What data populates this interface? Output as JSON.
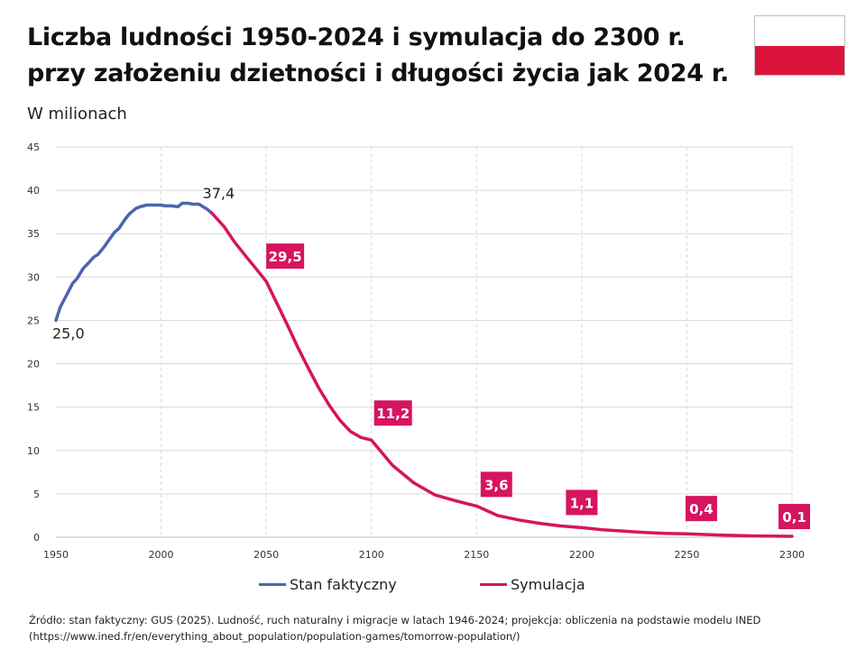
{
  "title_line1": "Liczba ludności 1950-2024 i symulacja do 2300 r.",
  "title_line2": "przy założeniu dzietności i długości życia jak 2024 r.",
  "subtitle": "W milionach",
  "source_line1": "Źródło: stan faktyczny: GUS (2025). Ludność, ruch naturalny i migracje w latach 1946-2024; projekcja: obliczenia na podstawie modelu INED",
  "source_line2": "(https://www.ined.fr/en/everything_about_population/population-games/tomorrow-population/)",
  "flag": {
    "top_color": "#ffffff",
    "bottom_color": "#dc143c"
  },
  "chart_data": {
    "type": "line",
    "title": "Liczba ludności 1950-2024 i symulacja do 2300 r. przy założeniu dzietności i długości życia jak 2024 r.",
    "ylabel": "W milionach",
    "xlabel": "",
    "xlim": [
      1950,
      2300
    ],
    "ylim": [
      0,
      45
    ],
    "x_ticks": [
      1950,
      2000,
      2050,
      2100,
      2150,
      2200,
      2250,
      2300
    ],
    "y_ticks": [
      0,
      5,
      10,
      15,
      20,
      25,
      30,
      35,
      40,
      45
    ],
    "grid": true,
    "legend_position": "bottom",
    "series": [
      {
        "name": "Stan faktyczny",
        "color": "#4a66ac",
        "x": [
          1950,
          1952,
          1955,
          1958,
          1960,
          1963,
          1965,
          1968,
          1970,
          1973,
          1975,
          1978,
          1980,
          1983,
          1985,
          1988,
          1990,
          1993,
          1995,
          1998,
          2000,
          2002,
          2005,
          2008,
          2010,
          2011,
          2013,
          2015,
          2018,
          2020,
          2022,
          2024
        ],
        "y": [
          25.0,
          26.5,
          27.9,
          29.3,
          29.8,
          31.0,
          31.5,
          32.3,
          32.6,
          33.5,
          34.2,
          35.2,
          35.6,
          36.7,
          37.3,
          37.9,
          38.1,
          38.3,
          38.3,
          38.3,
          38.3,
          38.2,
          38.2,
          38.1,
          38.5,
          38.5,
          38.5,
          38.4,
          38.4,
          38.1,
          37.8,
          37.4
        ]
      },
      {
        "name": "Symulacja",
        "color": "#d6145f",
        "x": [
          2024,
          2030,
          2035,
          2040,
          2045,
          2050,
          2055,
          2060,
          2065,
          2070,
          2075,
          2080,
          2085,
          2090,
          2095,
          2100,
          2110,
          2120,
          2130,
          2140,
          2150,
          2160,
          2170,
          2180,
          2190,
          2200,
          2210,
          2220,
          2230,
          2240,
          2250,
          2260,
          2270,
          2280,
          2290,
          2300
        ],
        "y": [
          37.4,
          35.8,
          34.0,
          32.5,
          31.0,
          29.5,
          27.0,
          24.5,
          21.9,
          19.5,
          17.2,
          15.2,
          13.5,
          12.2,
          11.5,
          11.2,
          8.3,
          6.3,
          4.9,
          4.2,
          3.6,
          2.5,
          2.0,
          1.6,
          1.3,
          1.1,
          0.85,
          0.7,
          0.55,
          0.45,
          0.4,
          0.3,
          0.22,
          0.16,
          0.12,
          0.1
        ]
      }
    ],
    "annotations": [
      {
        "x": 1950,
        "y": 25.0,
        "text": "25,0",
        "style": "plain"
      },
      {
        "x": 2024,
        "y": 37.4,
        "text": "37,4",
        "style": "plain"
      },
      {
        "x": 2050,
        "y": 29.5,
        "text": "29,5",
        "style": "boxed"
      },
      {
        "x": 2100,
        "y": 11.2,
        "text": "11,2",
        "style": "boxed"
      },
      {
        "x": 2150,
        "y": 3.6,
        "text": "3,6",
        "style": "boxed"
      },
      {
        "x": 2200,
        "y": 1.1,
        "text": "1,1",
        "style": "boxed"
      },
      {
        "x": 2250,
        "y": 0.4,
        "text": "0,4",
        "style": "boxed"
      },
      {
        "x": 2300,
        "y": 0.1,
        "text": "0,1",
        "style": "boxed"
      }
    ]
  }
}
